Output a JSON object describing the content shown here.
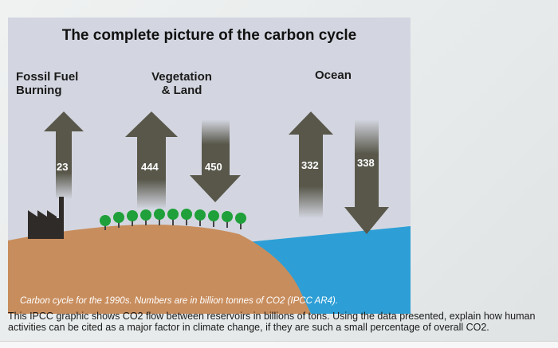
{
  "diagram": {
    "title": "The complete picture of the carbon cycle",
    "regions": {
      "fossil": [
        "Fossil Fuel",
        "Burning"
      ],
      "vegetation": [
        "Vegetation",
        "& Land"
      ],
      "ocean": "Ocean"
    },
    "flows": [
      {
        "value": "23",
        "direction": "up"
      },
      {
        "value": "444",
        "direction": "up"
      },
      {
        "value": "450",
        "direction": "down"
      },
      {
        "value": "332",
        "direction": "up"
      },
      {
        "value": "338",
        "direction": "down"
      }
    ],
    "caption": "Carbon cycle for the 1990s. Numbers are in billion tonnes of CO2 (IPCC AR4).",
    "colors": {
      "sky": "#d3d6e0",
      "arrow": "#58574a",
      "land": "#c88d5d",
      "ocean": "#2d9fd6",
      "tree": "#1fa03a",
      "factory": "#2f2b28"
    }
  },
  "question": {
    "text": "This IPCC graphic shows CO2 flow between reservoirs in billions of tons. Using the data presented, explain how human activities can be cited as a major factor in climate change, if they are such a small percentage of overall CO2."
  }
}
